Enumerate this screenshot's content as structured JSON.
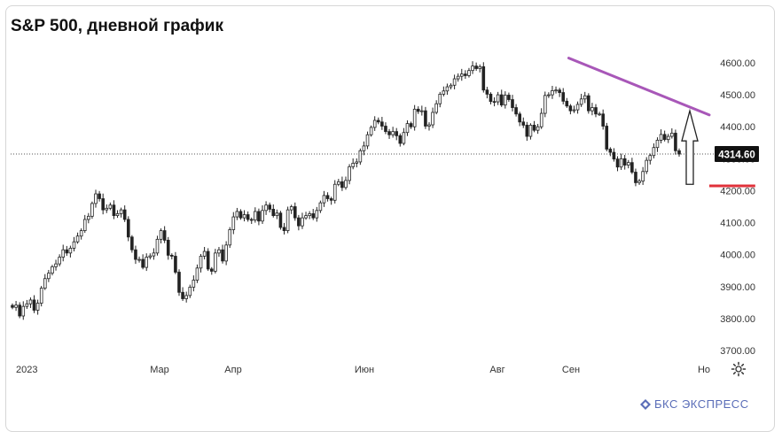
{
  "title": "S&P 500, дневной график",
  "brand": {
    "logo_text": "БКС ЭКСПРЕСС"
  },
  "colors": {
    "up": "#222222",
    "down": "#222222",
    "resistance": "#a857b8",
    "support": "#e0313a",
    "arrow": "#222222",
    "last_price_bg": "#111111"
  },
  "chart_data": {
    "type": "candlestick",
    "title": "S&P 500, дневной график",
    "y_ticks": [
      3700,
      3800,
      3900,
      4000,
      4100,
      4200,
      4300,
      4400,
      4500,
      4600
    ],
    "y_tick_labels": [
      "3700.00",
      "3800.00",
      "3900.00",
      "4000.00",
      "4100.00",
      "4200.00",
      "4300.00",
      "4400.00",
      "4500.00",
      "4600.00"
    ],
    "ylim": [
      3680,
      4630
    ],
    "x_labels": [
      "2023",
      "Мар",
      "Апр",
      "Июн",
      "Авг",
      "Сен",
      "Но"
    ],
    "last_price": 4314.6,
    "last_price_label": "4314.60",
    "close_series": [
      3835,
      3842,
      3808,
      3838,
      3846,
      3858,
      3826,
      3848,
      3895,
      3925,
      3942,
      3962,
      3971,
      3992,
      4015,
      4005,
      4020,
      4040,
      4058,
      4075,
      4110,
      4120,
      4160,
      4190,
      4175,
      4140,
      4145,
      4155,
      4122,
      4128,
      4140,
      4110,
      4055,
      4015,
      3985,
      3985,
      3960,
      3992,
      3996,
      4005,
      4048,
      4075,
      4045,
      3998,
      3995,
      3945,
      3882,
      3862,
      3872,
      3898,
      3920,
      3958,
      3995,
      4010,
      3955,
      3948,
      4005,
      4015,
      3980,
      4030,
      4078,
      4118,
      4135,
      4115,
      4125,
      4110,
      4108,
      4135,
      4105,
      4138,
      4155,
      4142,
      4122,
      4130,
      4085,
      4075,
      4140,
      4150,
      4115,
      4090,
      4115,
      4122,
      4128,
      4115,
      4138,
      4162,
      4185,
      4175,
      4170,
      4220,
      4228,
      4210,
      4232,
      4275,
      4286,
      4290,
      4325,
      4340,
      4375,
      4398,
      4420,
      4415,
      4402,
      4385,
      4375,
      4385,
      4372,
      4348,
      4382,
      4410,
      4400,
      4455,
      4448,
      4450,
      4402,
      4406,
      4445,
      4472,
      4502,
      4512,
      4525,
      4530,
      4550,
      4558,
      4565,
      4560,
      4576,
      4590,
      4582,
      4588,
      4515,
      4502,
      4479,
      4478,
      4500,
      4468,
      4499,
      4485,
      4460,
      4440,
      4415,
      4405,
      4370,
      4405,
      4389,
      4400,
      4442,
      4498,
      4500,
      4513,
      4515,
      4507,
      4480,
      4465,
      4450,
      4453,
      4470,
      4487,
      4497,
      4450,
      4460,
      4440,
      4440,
      4402,
      4330,
      4320,
      4299,
      4274,
      4300,
      4280,
      4288,
      4258,
      4225,
      4230,
      4260,
      4295,
      4310,
      4335,
      4358,
      4376,
      4360,
      4370,
      4380,
      4325,
      4314.6
    ],
    "annotations": [
      {
        "kind": "trendline",
        "label": "resistance",
        "from": [
          155,
          4615
        ],
        "to": [
          225,
          4437
        ]
      },
      {
        "kind": "horizontal_line",
        "label": "support",
        "value": 4215,
        "from_index": 205,
        "to_index": 225
      },
      {
        "kind": "arrow_up",
        "label": "breakout arrow",
        "at_index": 220,
        "from": 4220,
        "to": 4450
      }
    ]
  }
}
